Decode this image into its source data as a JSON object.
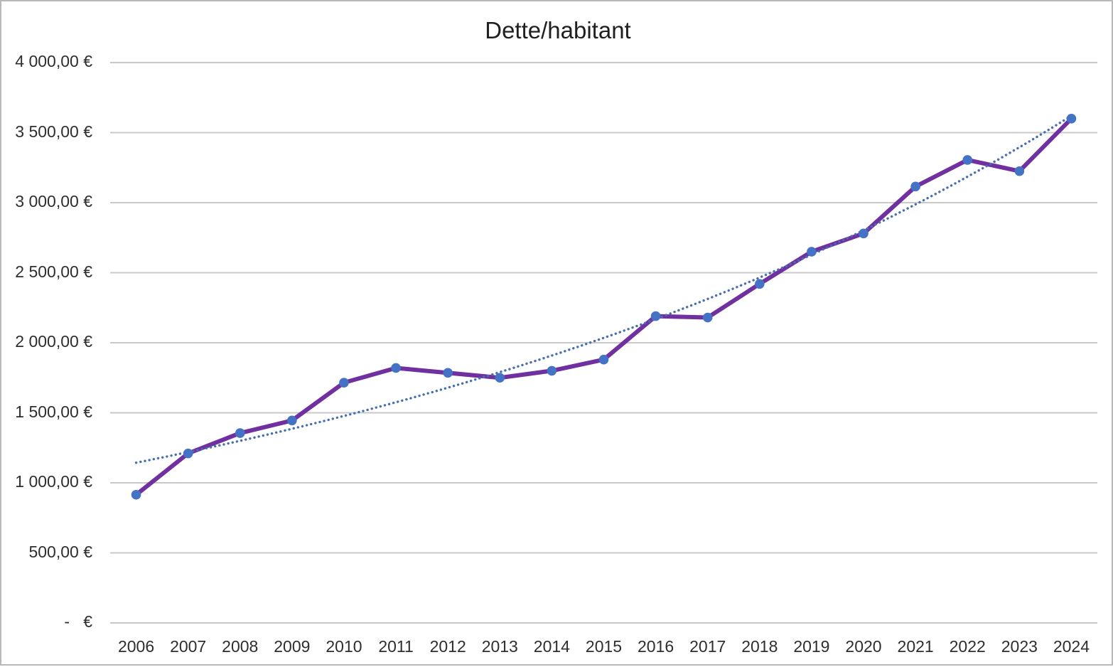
{
  "chart_data": {
    "type": "line",
    "title": "Dette/habitant",
    "xlabel": "",
    "ylabel": "",
    "categories": [
      "2006",
      "2007",
      "2008",
      "2009",
      "2010",
      "2011",
      "2012",
      "2013",
      "2014",
      "2015",
      "2016",
      "2017",
      "2018",
      "2019",
      "2020",
      "2021",
      "2022",
      "2023",
      "2024"
    ],
    "series": [
      {
        "name": "Dette/habitant",
        "values": [
          915,
          1210,
          1355,
          1445,
          1715,
          1820,
          1785,
          1750,
          1800,
          1880,
          2190,
          2180,
          2420,
          2650,
          2780,
          3115,
          3305,
          3225,
          3600
        ]
      }
    ],
    "trendline": {
      "series": "Dette/habitant",
      "type": "exponential",
      "line_style": "dotted"
    },
    "y_ticks_top_to_bottom": [
      "4 000,00 €",
      "3 500,00 €",
      "3 000,00 €",
      "2 500,00 €",
      "2 000,00 €",
      "1 500,00 €",
      "1 000,00 €",
      "500,00 €",
      "-   €"
    ],
    "ylim": [
      0,
      4000
    ],
    "y_step": 500,
    "grid": true,
    "legend_position": "none",
    "colors": {
      "series_line": "#7030A0",
      "marker": "#4472C4",
      "trendline": "#466EB0",
      "gridline": "#C9C9C9",
      "tick_text": "#2e2e2e",
      "title_text": "#1f1f1f",
      "background": "#ffffff"
    }
  }
}
